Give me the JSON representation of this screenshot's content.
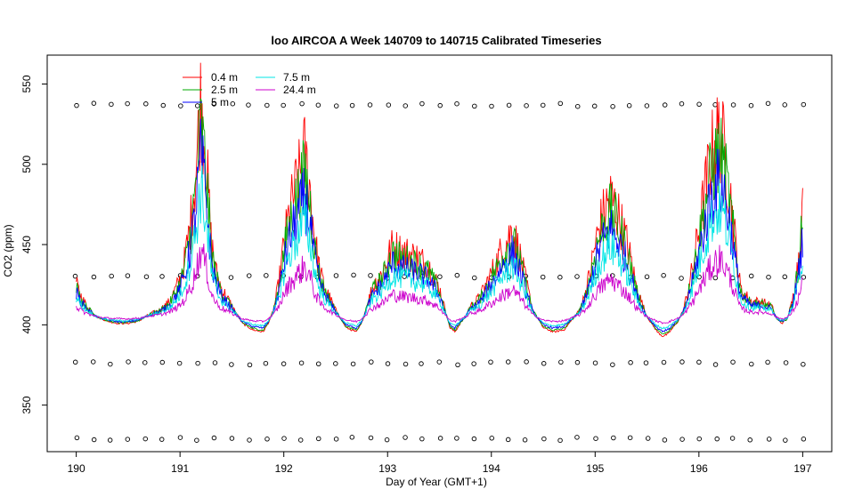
{
  "chart_data": {
    "type": "line",
    "title": "loo AIRCOA A  Week 140709 to 140715  Calibrated Timeseries",
    "xlabel": "Day of Year (GMT+1)",
    "ylabel": "CO2 (ppm)",
    "xlim": [
      189.72,
      197.28
    ],
    "ylim": [
      321,
      568
    ],
    "x_ticks": [
      190,
      191,
      192,
      193,
      194,
      195,
      196,
      197
    ],
    "y_ticks": [
      350,
      400,
      450,
      500,
      550
    ],
    "legend_position": "top-left",
    "series": [
      {
        "name": "0.4 m",
        "color": "#ff0000"
      },
      {
        "name": "2.5 m",
        "color": "#00aa00"
      },
      {
        "name": "5 m",
        "color": "#0000ff"
      },
      {
        "name": "7.5 m",
        "color": "#00e5e5"
      },
      {
        "name": "24.4 m",
        "color": "#cc00cc"
      }
    ],
    "base_profile": {
      "x": [
        190.0,
        190.05,
        190.1,
        190.2,
        190.3,
        190.4,
        190.5,
        190.6,
        190.7,
        190.8,
        190.9,
        191.0,
        191.05,
        191.1,
        191.15,
        191.2,
        191.25,
        191.3,
        191.35,
        191.4,
        191.5,
        191.6,
        191.7,
        191.8,
        191.85,
        191.9,
        191.95,
        192.0,
        192.05,
        192.1,
        192.15,
        192.2,
        192.25,
        192.3,
        192.35,
        192.4,
        192.5,
        192.6,
        192.7,
        192.75,
        192.8,
        192.85,
        192.9,
        192.95,
        193.0,
        193.05,
        193.1,
        193.2,
        193.3,
        193.4,
        193.5,
        193.6,
        193.65,
        193.7,
        193.75,
        193.8,
        193.85,
        193.9,
        193.95,
        194.0,
        194.05,
        194.1,
        194.15,
        194.2,
        194.25,
        194.3,
        194.4,
        194.5,
        194.6,
        194.7,
        194.75,
        194.8,
        194.85,
        194.9,
        194.95,
        195.0,
        195.05,
        195.1,
        195.15,
        195.2,
        195.25,
        195.3,
        195.35,
        195.4,
        195.5,
        195.6,
        195.65,
        195.7,
        195.75,
        195.8,
        195.85,
        195.9,
        195.95,
        196.0,
        196.05,
        196.1,
        196.15,
        196.2,
        196.25,
        196.3,
        196.35,
        196.4,
        196.5,
        196.6,
        196.7,
        196.75,
        196.8,
        196.85,
        196.9,
        196.95,
        197.0
      ],
      "y": [
        420,
        414,
        410,
        405,
        403,
        402,
        402,
        403,
        406,
        408,
        412,
        422,
        432,
        448,
        470,
        505,
        480,
        440,
        425,
        418,
        410,
        402,
        399,
        398,
        402,
        408,
        420,
        438,
        452,
        462,
        470,
        480,
        465,
        440,
        425,
        418,
        408,
        400,
        398,
        402,
        410,
        418,
        422,
        425,
        432,
        438,
        436,
        434,
        432,
        428,
        418,
        400,
        398,
        402,
        405,
        410,
        412,
        415,
        420,
        425,
        430,
        436,
        440,
        445,
        438,
        428,
        408,
        400,
        398,
        399,
        402,
        405,
        408,
        415,
        425,
        438,
        448,
        455,
        460,
        455,
        448,
        440,
        430,
        418,
        405,
        398,
        396,
        397,
        400,
        403,
        408,
        418,
        430,
        445,
        460,
        475,
        485,
        490,
        480,
        462,
        440,
        418,
        412,
        412,
        410,
        404,
        402,
        404,
        412,
        428,
        455
      ]
    },
    "depth_factors": [
      1.35,
      1.2,
      1.0,
      0.8,
      0.42
    ],
    "reference_rows": [
      {
        "y": 537
      },
      {
        "y": 430
      },
      {
        "y": 376
      },
      {
        "y": 329
      }
    ]
  }
}
